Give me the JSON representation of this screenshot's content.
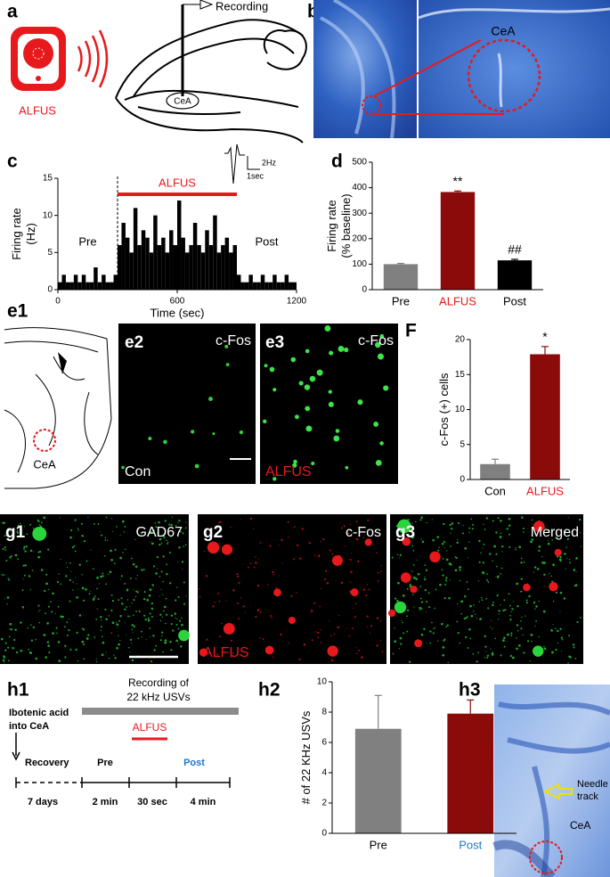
{
  "panels": {
    "a": {
      "label": "a",
      "recording": "Recording",
      "device": "ALFUS",
      "region": "CeA"
    },
    "b": {
      "label": "b",
      "region": "CeA"
    },
    "c": {
      "label": "c"
    },
    "d": {
      "label": "d"
    },
    "e1": {
      "label": "e1",
      "region": "CeA"
    },
    "e2": {
      "label": "e2",
      "stain": "c-Fos",
      "group": "Con"
    },
    "e3": {
      "label": "e3",
      "stain": "c-Fos",
      "group": "ALFUS"
    },
    "F": {
      "label": "F"
    },
    "g1": {
      "label": "g1",
      "stain": "GAD67"
    },
    "g2": {
      "label": "g2",
      "stain": "c-Fos",
      "group": "ALFUS"
    },
    "g3": {
      "label": "g3",
      "stain": "Merged"
    },
    "h1": {
      "label": "h1",
      "injection": [
        "Ibotenic acid",
        "into CeA"
      ],
      "recording": [
        "Recording of",
        "22 kHz USVs"
      ],
      "phases": [
        "Recovery",
        "Pre",
        "ALFUS",
        "Post"
      ],
      "durations": [
        "7 days",
        "2 min",
        "30 sec",
        "4 min"
      ]
    },
    "h2": {
      "label": "h2"
    },
    "h3": {
      "label": "h3",
      "track": [
        "Needle",
        "track"
      ],
      "region": "CeA"
    }
  },
  "chart_data": [
    {
      "type": "histogram",
      "xlabel": "Time (sec)",
      "ylabel": [
        "Firing rate",
        "(Hz)"
      ],
      "bins": [
        0,
        20,
        40,
        60,
        80,
        100,
        120,
        140,
        160,
        180,
        200,
        220,
        240,
        260,
        280,
        300,
        320,
        340,
        360,
        380,
        400,
        420,
        440,
        460,
        480,
        500,
        520,
        540,
        560,
        580,
        600,
        620,
        640,
        660,
        680,
        700,
        720,
        740,
        760,
        780,
        800,
        820,
        840,
        860,
        880,
        900,
        920,
        940,
        960,
        980,
        1000,
        1020,
        1040,
        1060,
        1080,
        1100,
        1120,
        1140,
        1160,
        1180,
        1200
      ],
      "values": [
        1,
        2,
        1,
        1,
        2,
        1,
        2,
        1,
        1,
        3,
        1,
        2,
        1,
        1,
        2,
        6,
        9,
        7,
        5,
        11,
        6,
        8,
        7,
        5,
        10,
        6,
        7,
        5,
        8,
        6,
        12,
        7,
        5,
        6,
        9,
        6,
        5,
        8,
        6,
        10,
        5,
        6,
        7,
        5,
        6,
        2,
        1,
        1,
        2,
        1,
        1,
        2,
        1,
        1,
        2,
        1,
        1,
        2,
        1,
        1
      ],
      "color": "#000000",
      "xlim": [
        0,
        1200
      ],
      "xticks": [
        0,
        600,
        1200
      ],
      "ylim": [
        0,
        15
      ],
      "yticks": [
        0,
        5,
        10,
        15
      ],
      "stimulus": [
        300,
        900
      ],
      "stimulus_label": "ALFUS",
      "stimulus_color": "#e8191c",
      "phase_labels": [
        "Pre",
        "Post"
      ],
      "scale_labels": [
        "2Hz",
        "1sec"
      ]
    },
    {
      "type": "bar",
      "ylabel": [
        "Firing rate",
        "(% baseline)"
      ],
      "categories": [
        "Pre",
        "ALFUS",
        "Post"
      ],
      "values": [
        100,
        383,
        115
      ],
      "errors": [
        3,
        4,
        4
      ],
      "colors": [
        "#808080",
        "#8b0a0a",
        "#000000"
      ],
      "category_colors": [
        "#000000",
        "#e8191c",
        "#000000"
      ],
      "ylim": [
        0,
        500
      ],
      "yticks": [
        0,
        100,
        200,
        300,
        400,
        500
      ],
      "annotations": [
        {
          "index": 1,
          "text": "**"
        },
        {
          "index": 2,
          "text": "##"
        }
      ]
    },
    {
      "type": "bar",
      "ylabel": [
        "c-Fos (+) cells"
      ],
      "categories": [
        "Con",
        "ALFUS"
      ],
      "values": [
        2.2,
        17.9
      ],
      "errors": [
        0.7,
        1.1
      ],
      "colors": [
        "#808080",
        "#8b0a0a"
      ],
      "category_colors": [
        "#000000",
        "#e8191c"
      ],
      "ylim": [
        0,
        20
      ],
      "yticks": [
        0,
        5,
        10,
        15,
        20
      ],
      "annotations": [
        {
          "index": 1,
          "text": "*"
        }
      ]
    },
    {
      "type": "bar",
      "ylabel": [
        "# of 22 KHz USVs"
      ],
      "categories": [
        "Pre",
        "Post"
      ],
      "values": [
        6.9,
        7.9
      ],
      "errors": [
        2.2,
        0.9
      ],
      "colors": [
        "#808080",
        "#8b0a0a"
      ],
      "category_colors": [
        "#000000",
        "#1f78c8"
      ],
      "ylim": [
        0,
        10
      ],
      "yticks": [
        0,
        2,
        4,
        6,
        8,
        10
      ],
      "annotations": []
    }
  ]
}
